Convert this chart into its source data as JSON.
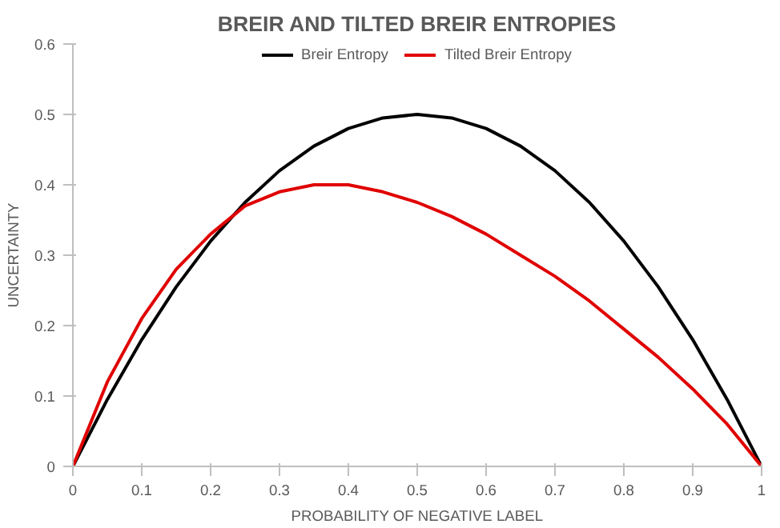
{
  "chart_data": {
    "type": "line",
    "title": "BREIR AND TILTED BREIR ENTROPIES",
    "xlabel": "PROBABILITY OF NEGATIVE LABEL",
    "ylabel": "UNCERTAINTY",
    "x": [
      0,
      0.05,
      0.1,
      0.15,
      0.2,
      0.25,
      0.3,
      0.35,
      0.4,
      0.45,
      0.5,
      0.55,
      0.6,
      0.65,
      0.7,
      0.75,
      0.8,
      0.85,
      0.9,
      0.95,
      1
    ],
    "series": [
      {
        "name": "Breir Entropy",
        "color": "#000000",
        "values": [
          0,
          0.095,
          0.18,
          0.255,
          0.32,
          0.375,
          0.42,
          0.455,
          0.48,
          0.495,
          0.5,
          0.495,
          0.48,
          0.455,
          0.42,
          0.375,
          0.32,
          0.255,
          0.18,
          0.095,
          0
        ]
      },
      {
        "name": "Tilted Breir Entropy",
        "color": "#e00000",
        "values": [
          0,
          0.12,
          0.21,
          0.28,
          0.33,
          0.37,
          0.39,
          0.4,
          0.4,
          0.39,
          0.375,
          0.355,
          0.33,
          0.3,
          0.27,
          0.235,
          0.195,
          0.155,
          0.11,
          0.06,
          0
        ]
      }
    ],
    "xlim": [
      0,
      1
    ],
    "ylim": [
      0,
      0.6
    ],
    "xticks": [
      0,
      0.1,
      0.2,
      0.3,
      0.4,
      0.5,
      0.6,
      0.7,
      0.8,
      0.9,
      1
    ],
    "yticks": [
      0,
      0.1,
      0.2,
      0.3,
      0.4,
      0.5,
      0.6
    ],
    "legend": "top",
    "marker": "none",
    "line_style": "solid",
    "grid": false
  }
}
